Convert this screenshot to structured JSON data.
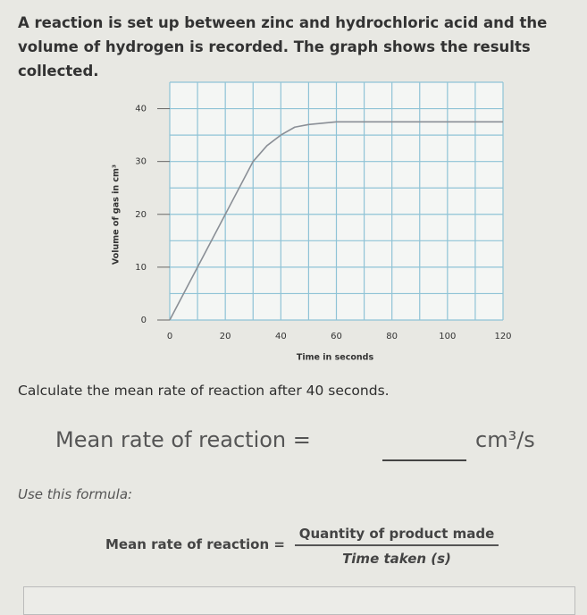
{
  "intro": "A reaction is set up between zinc and hydrochloric acid and the volume of hydrogen is recorded. The graph shows the results collected.",
  "chart_data": {
    "type": "line",
    "x": [
      0,
      10,
      20,
      30,
      35,
      40,
      45,
      50,
      60,
      80,
      100,
      120
    ],
    "values": [
      0,
      10,
      20,
      30,
      33,
      35,
      36.5,
      37,
      37.5,
      37.5,
      37.5,
      37.5
    ],
    "color": "#8a8f96",
    "x_label": "Time in seconds",
    "y_label": "Volume of gas in cm³",
    "xlim": [
      0,
      120
    ],
    "ylim": [
      0,
      45
    ],
    "xticks": [
      0,
      20,
      40,
      60,
      80,
      100,
      120
    ],
    "yticks": [
      0,
      10,
      20,
      30,
      40
    ],
    "xminor": [
      10,
      30,
      50,
      70,
      90,
      110
    ],
    "yminor": [
      5,
      15,
      25,
      35,
      45
    ],
    "grid": true
  },
  "question": "Calculate the mean rate of reaction after 40 seconds.",
  "answer_label": "Mean rate of reaction =",
  "answer_unit": "cm³/s",
  "formula_intro": "Use this formula:",
  "formula": {
    "label": "Mean rate of reaction =",
    "numerator": "Quantity of product made",
    "denominator": "Time taken (s)"
  }
}
